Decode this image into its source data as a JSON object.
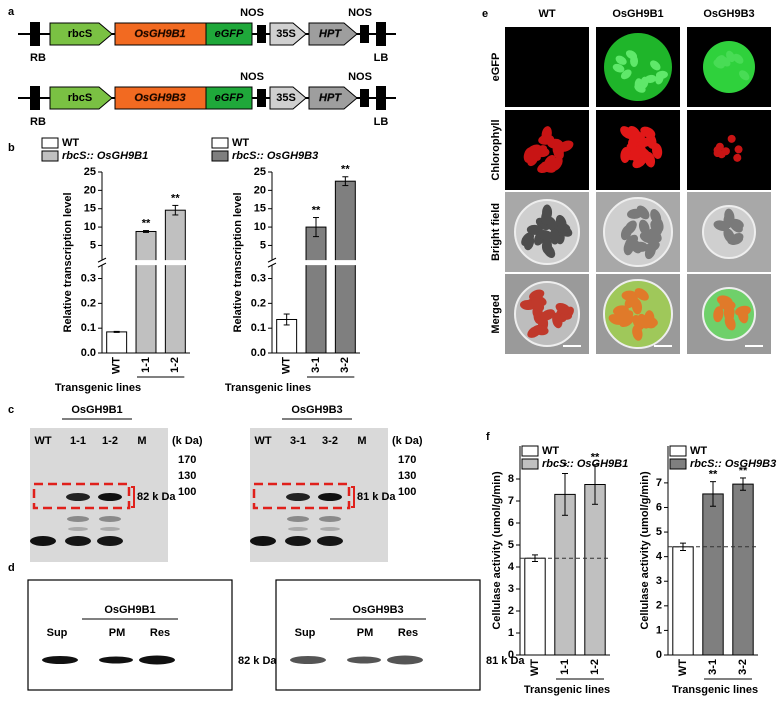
{
  "panel_labels": [
    "a",
    "b",
    "c",
    "d",
    "e",
    "f"
  ],
  "constructs": [
    {
      "parts": [
        "rbcS",
        "OsGH9B1",
        "eGFP",
        "35S",
        "HPT"
      ],
      "terminators": [
        "NOS",
        "NOS"
      ],
      "borders": [
        "RB",
        "LB"
      ]
    },
    {
      "parts": [
        "rbcS",
        "OsGH9B3",
        "eGFP",
        "35S",
        "HPT"
      ],
      "terminators": [
        "NOS",
        "NOS"
      ],
      "borders": [
        "RB",
        "LB"
      ]
    }
  ],
  "chart_data": [
    {
      "type": "bar",
      "ylabel": "Relative transcription level",
      "xlabel": "Transgenic lines",
      "ylim": [
        0,
        25
      ],
      "axis_break": [
        0.35,
        1
      ],
      "yticks": [
        {
          "value": 0,
          "label": "0.0"
        },
        0.1,
        0.2,
        0.3,
        5,
        10,
        15,
        20,
        25
      ],
      "series": [
        {
          "name": "WT",
          "color": "#ffffff",
          "categories": [
            "WT"
          ],
          "values": [
            0.085
          ],
          "errors": [
            0.002
          ]
        },
        {
          "name": "rbcS:: OsGH9B1",
          "color": "#c0c0c0",
          "categories": [
            "1-1",
            "1-2"
          ],
          "values": [
            8.8,
            14.6
          ],
          "errors": [
            0.25,
            1.3
          ],
          "annotations": [
            "**",
            "**"
          ]
        }
      ]
    },
    {
      "type": "bar",
      "ylabel": "Relative transcription level",
      "xlabel": "Transgenic lines",
      "ylim": [
        0,
        25
      ],
      "axis_break": [
        0.35,
        1
      ],
      "yticks": [
        {
          "value": 0,
          "label": "0.0"
        },
        0.1,
        0.2,
        0.3,
        5,
        10,
        15,
        20,
        25
      ],
      "series": [
        {
          "name": "WT",
          "color": "#ffffff",
          "categories": [
            "WT"
          ],
          "values": [
            0.135
          ],
          "errors": [
            0.022
          ]
        },
        {
          "name": "rbcS:: OsGH9B3",
          "color": "#7f7f7f",
          "categories": [
            "3-1",
            "3-2"
          ],
          "values": [
            10.0,
            22.5
          ],
          "errors": [
            2.6,
            1.2
          ],
          "annotations": [
            "**",
            "**"
          ]
        }
      ]
    },
    {
      "type": "bar",
      "ylabel": "Cellulase activity (umol/g/min)",
      "xlabel": "Transgenic lines",
      "ylim": [
        0,
        9.5
      ],
      "yticks": [
        0,
        1,
        2,
        3,
        4,
        5,
        6,
        7,
        8
      ],
      "reference_line": "dashed",
      "series": [
        {
          "name": "WT",
          "color": "#ffffff",
          "categories": [
            "WT"
          ],
          "values": [
            4.4
          ],
          "errors": [
            0.15
          ]
        },
        {
          "name": "rbcS:: OsGH9B1",
          "color": "#c0c0c0",
          "categories": [
            "1-1",
            "1-2"
          ],
          "values": [
            7.3,
            7.75
          ],
          "errors": [
            0.95,
            0.9
          ],
          "annotations": [
            "*",
            "**"
          ]
        }
      ]
    },
    {
      "type": "bar",
      "ylabel": "Cellulase activity (umol/g/min)",
      "xlabel": "Transgenic lines",
      "ylim": [
        0,
        8.5
      ],
      "yticks": [
        0,
        1,
        2,
        3,
        4,
        5,
        6,
        7
      ],
      "reference_line": "dashed",
      "series": [
        {
          "name": "WT",
          "color": "#ffffff",
          "categories": [
            "WT"
          ],
          "values": [
            4.4
          ],
          "errors": [
            0.15
          ]
        },
        {
          "name": "rbcS:: OsGH9B3",
          "color": "#7f7f7f",
          "categories": [
            "3-1",
            "3-2"
          ],
          "values": [
            6.55,
            6.95
          ],
          "errors": [
            0.5,
            0.25
          ],
          "annotations": [
            "**",
            "**"
          ]
        }
      ]
    }
  ],
  "gels": [
    {
      "title": "OsGH9B1",
      "lanes": [
        "WT",
        "1-1",
        "1-2",
        "M"
      ],
      "marker_unit": "(k Da)",
      "markers": [
        "170",
        "130",
        "100"
      ],
      "band_label": "82 k Da"
    },
    {
      "title": "OsGH9B3",
      "lanes": [
        "WT",
        "3-1",
        "3-2",
        "M"
      ],
      "marker_unit": "(k Da)",
      "markers": [
        "170",
        "130",
        "100"
      ],
      "band_label": "81 k Da"
    }
  ],
  "fractionation": [
    {
      "title": "OsGH9B1",
      "fractions": [
        "Sup",
        "PM",
        "Res"
      ],
      "band_label": "82 k Da"
    },
    {
      "title": "OsGH9B3",
      "fractions": [
        "Sup",
        "PM",
        "Res"
      ],
      "band_label": "81 k Da"
    }
  ],
  "microscopy": {
    "columns": [
      "WT",
      "OsGH9B1",
      "OsGH9B3"
    ],
    "rows": [
      "eGFP",
      "Chlorophyll",
      "Bright field",
      "Merged"
    ]
  }
}
